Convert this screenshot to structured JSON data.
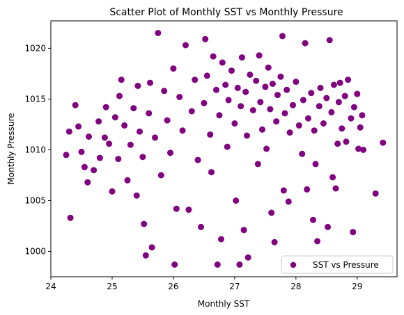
{
  "chart_data": {
    "type": "scatter",
    "title": "Scatter Plot of Monthly SST vs Monthly Pressure",
    "xlabel": "Monthly SST",
    "ylabel": "Monthly Pressure",
    "xlim": [
      24.0,
      29.65
    ],
    "ylim": [
      997.5,
      1022.7
    ],
    "xticks": [
      24,
      25,
      26,
      27,
      28,
      29
    ],
    "yticks": [
      1000,
      1005,
      1010,
      1015,
      1020
    ],
    "grid": false,
    "legend": {
      "position": "lower-right",
      "entries": [
        "SST vs Pressure"
      ]
    },
    "series": [
      {
        "name": "SST vs Pressure",
        "color": "#800080",
        "marker": "circle",
        "points": [
          [
            24.25,
            1009.5
          ],
          [
            24.3,
            1011.8
          ],
          [
            24.32,
            1003.3
          ],
          [
            24.4,
            1014.4
          ],
          [
            24.45,
            1012.3
          ],
          [
            24.5,
            1009.8
          ],
          [
            24.55,
            1008.3
          ],
          [
            24.6,
            1006.8
          ],
          [
            24.62,
            1011.3
          ],
          [
            24.7,
            1008.0
          ],
          [
            24.78,
            1012.8
          ],
          [
            24.8,
            1009.2
          ],
          [
            24.88,
            1011.2
          ],
          [
            24.9,
            1014.2
          ],
          [
            24.95,
            1010.6
          ],
          [
            25.0,
            1005.9
          ],
          [
            25.05,
            1013.2
          ],
          [
            25.1,
            1009.1
          ],
          [
            25.12,
            1015.3
          ],
          [
            25.15,
            1016.9
          ],
          [
            25.2,
            1012.4
          ],
          [
            25.25,
            1007.0
          ],
          [
            25.3,
            1010.5
          ],
          [
            25.35,
            1014.1
          ],
          [
            25.4,
            1005.5
          ],
          [
            25.42,
            1016.3
          ],
          [
            25.45,
            1011.8
          ],
          [
            25.5,
            1009.3
          ],
          [
            25.52,
            1002.7
          ],
          [
            25.55,
            999.6
          ],
          [
            25.6,
            1013.6
          ],
          [
            25.62,
            1016.6
          ],
          [
            25.65,
            1000.4
          ],
          [
            25.7,
            1011.2
          ],
          [
            25.75,
            1021.5
          ],
          [
            25.8,
            1007.5
          ],
          [
            25.85,
            1015.8
          ],
          [
            25.9,
            1012.9
          ],
          [
            25.95,
            1009.7
          ],
          [
            26.0,
            1018.0
          ],
          [
            26.02,
            998.7
          ],
          [
            26.05,
            1004.2
          ],
          [
            26.1,
            1015.2
          ],
          [
            26.15,
            1011.9
          ],
          [
            26.2,
            1020.3
          ],
          [
            26.25,
            1004.1
          ],
          [
            26.3,
            1013.8
          ],
          [
            26.35,
            1016.9
          ],
          [
            26.4,
            1009.0
          ],
          [
            26.45,
            1002.4
          ],
          [
            26.5,
            1014.6
          ],
          [
            26.52,
            1020.9
          ],
          [
            26.55,
            1017.3
          ],
          [
            26.6,
            1011.5
          ],
          [
            26.62,
            1007.8
          ],
          [
            26.65,
            1019.2
          ],
          [
            26.7,
            1015.9
          ],
          [
            26.72,
            998.7
          ],
          [
            26.75,
            1013.4
          ],
          [
            26.78,
            1001.2
          ],
          [
            26.8,
            1018.6
          ],
          [
            26.85,
            1016.4
          ],
          [
            26.88,
            1010.3
          ],
          [
            26.9,
            1014.9
          ],
          [
            26.95,
            1017.8
          ],
          [
            27.0,
            1012.6
          ],
          [
            27.02,
            1005.0
          ],
          [
            27.05,
            1016.1
          ],
          [
            27.08,
            998.7
          ],
          [
            27.1,
            1014.3
          ],
          [
            27.12,
            1019.1
          ],
          [
            27.15,
            1002.1
          ],
          [
            27.18,
            1015.7
          ],
          [
            27.2,
            1011.4
          ],
          [
            27.22,
            999.4
          ],
          [
            27.25,
            1017.4
          ],
          [
            27.3,
            1013.9
          ],
          [
            27.35,
            1016.8
          ],
          [
            27.38,
            1008.6
          ],
          [
            27.4,
            1019.3
          ],
          [
            27.42,
            1014.7
          ],
          [
            27.45,
            1012.0
          ],
          [
            27.5,
            1016.2
          ],
          [
            27.52,
            1010.1
          ],
          [
            27.55,
            1018.1
          ],
          [
            27.58,
            1014.0
          ],
          [
            27.6,
            1003.8
          ],
          [
            27.62,
            1016.5
          ],
          [
            27.65,
            1000.9
          ],
          [
            27.68,
            1012.8
          ],
          [
            27.7,
            1015.4
          ],
          [
            27.75,
            1017.2
          ],
          [
            27.78,
            1021.2
          ],
          [
            27.8,
            1006.0
          ],
          [
            27.82,
            1013.6
          ],
          [
            27.85,
            1015.9
          ],
          [
            27.88,
            1004.9
          ],
          [
            27.9,
            1011.7
          ],
          [
            27.95,
            1014.4
          ],
          [
            28.0,
            1016.7
          ],
          [
            28.05,
            1012.4
          ],
          [
            28.1,
            1009.6
          ],
          [
            28.12,
            1014.9
          ],
          [
            28.15,
            1020.5
          ],
          [
            28.18,
            1006.1
          ],
          [
            28.2,
            1013.1
          ],
          [
            28.25,
            1015.6
          ],
          [
            28.28,
            1003.1
          ],
          [
            28.3,
            1011.9
          ],
          [
            28.32,
            1008.6
          ],
          [
            28.35,
            1001.0
          ],
          [
            28.38,
            1014.3
          ],
          [
            28.4,
            1016.1
          ],
          [
            28.45,
            1012.6
          ],
          [
            28.5,
            1015.1
          ],
          [
            28.52,
            1002.4
          ],
          [
            28.55,
            1020.8
          ],
          [
            28.58,
            1013.7
          ],
          [
            28.6,
            1007.3
          ],
          [
            28.62,
            1016.4
          ],
          [
            28.65,
            1006.2
          ],
          [
            28.68,
            1010.6
          ],
          [
            28.7,
            1014.7
          ],
          [
            28.72,
            1016.6
          ],
          [
            28.75,
            1012.1
          ],
          [
            28.8,
            1015.3
          ],
          [
            28.82,
            1010.8
          ],
          [
            28.85,
            1016.9
          ],
          [
            28.9,
            1013.1
          ],
          [
            28.93,
            1001.9
          ],
          [
            28.95,
            1014.2
          ],
          [
            29.0,
            1015.5
          ],
          [
            29.02,
            1010.1
          ],
          [
            29.05,
            1012.2
          ],
          [
            29.08,
            1013.4
          ],
          [
            29.1,
            1010.0
          ],
          [
            29.3,
            1005.7
          ],
          [
            29.42,
            1010.7
          ]
        ]
      }
    ]
  }
}
